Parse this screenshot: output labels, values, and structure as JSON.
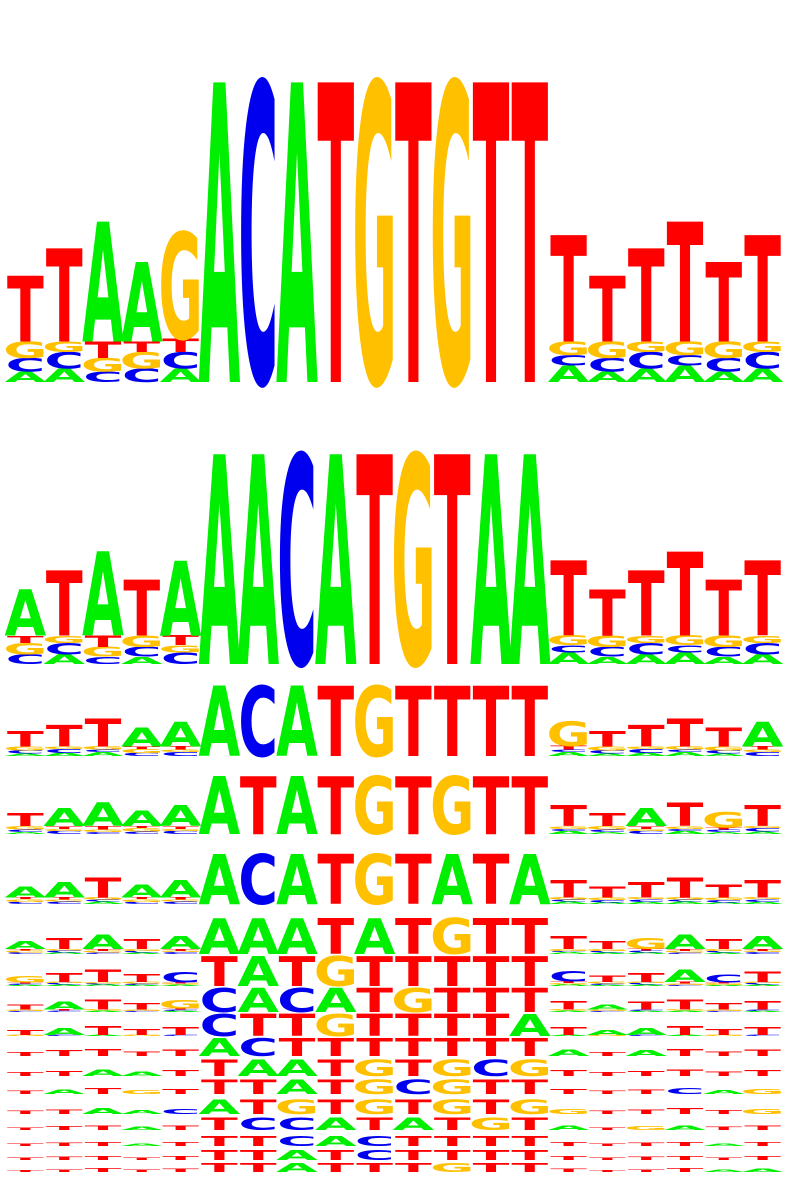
{
  "colors": {
    "A": "#00ee00",
    "C": "#0000ee",
    "G": "#ffc000",
    "T": "#ff0000"
  },
  "logos": [
    {
      "name": "logo-1",
      "consensus": "TTAAGACATGTGTTTTTTTT"
    },
    {
      "name": "logo-2",
      "consensus": "ATATAAACATGTAATTTTTT"
    },
    {
      "name": "logo-3",
      "consensus": "TTTAAACATGTTTTGTTTTA"
    },
    {
      "name": "logo-4",
      "consensus": "TAAAAATATGTGTTTTATGT"
    },
    {
      "name": "logo-5",
      "consensus": "AATAAACATGTATATTTTTT"
    },
    {
      "name": "logo-6",
      "consensus": "ATATAAAATATGTTTTGATA"
    },
    {
      "name": "logo-7",
      "consensus": "GTTTCTATGTTTTTCTTACT"
    },
    {
      "name": "logo-8",
      "consensus": "TATTGCACATGTTTTATTTT"
    },
    {
      "name": "logo-9",
      "consensus": "TATTTCTTGTTTTATAATTT"
    },
    {
      "name": "logo-10",
      "consensus": "TTTTTACTTTTTTTATATTT"
    },
    {
      "name": "logo-11",
      "consensus": "TTAATTAATGTGCGTTTTTT"
    },
    {
      "name": "logo-12",
      "consensus": "TATGTTTATGCGTTTTTCAG"
    },
    {
      "name": "logo-13",
      "consensus": "TTAACATGTGTGTGGTTTTG"
    },
    {
      "name": "logo-14",
      "consensus": "TTTATTCCATATGTATGATT"
    },
    {
      "name": "logo-15",
      "consensus": "TTTATTTCACTTTTTTTTAT"
    },
    {
      "name": "logo-16",
      "consensus": "TTTTTTTATCTTTTTTTTTT"
    },
    {
      "name": "logo-17",
      "consensus": "TTTTTTTATTTGTTTTTTAA"
    }
  ]
}
